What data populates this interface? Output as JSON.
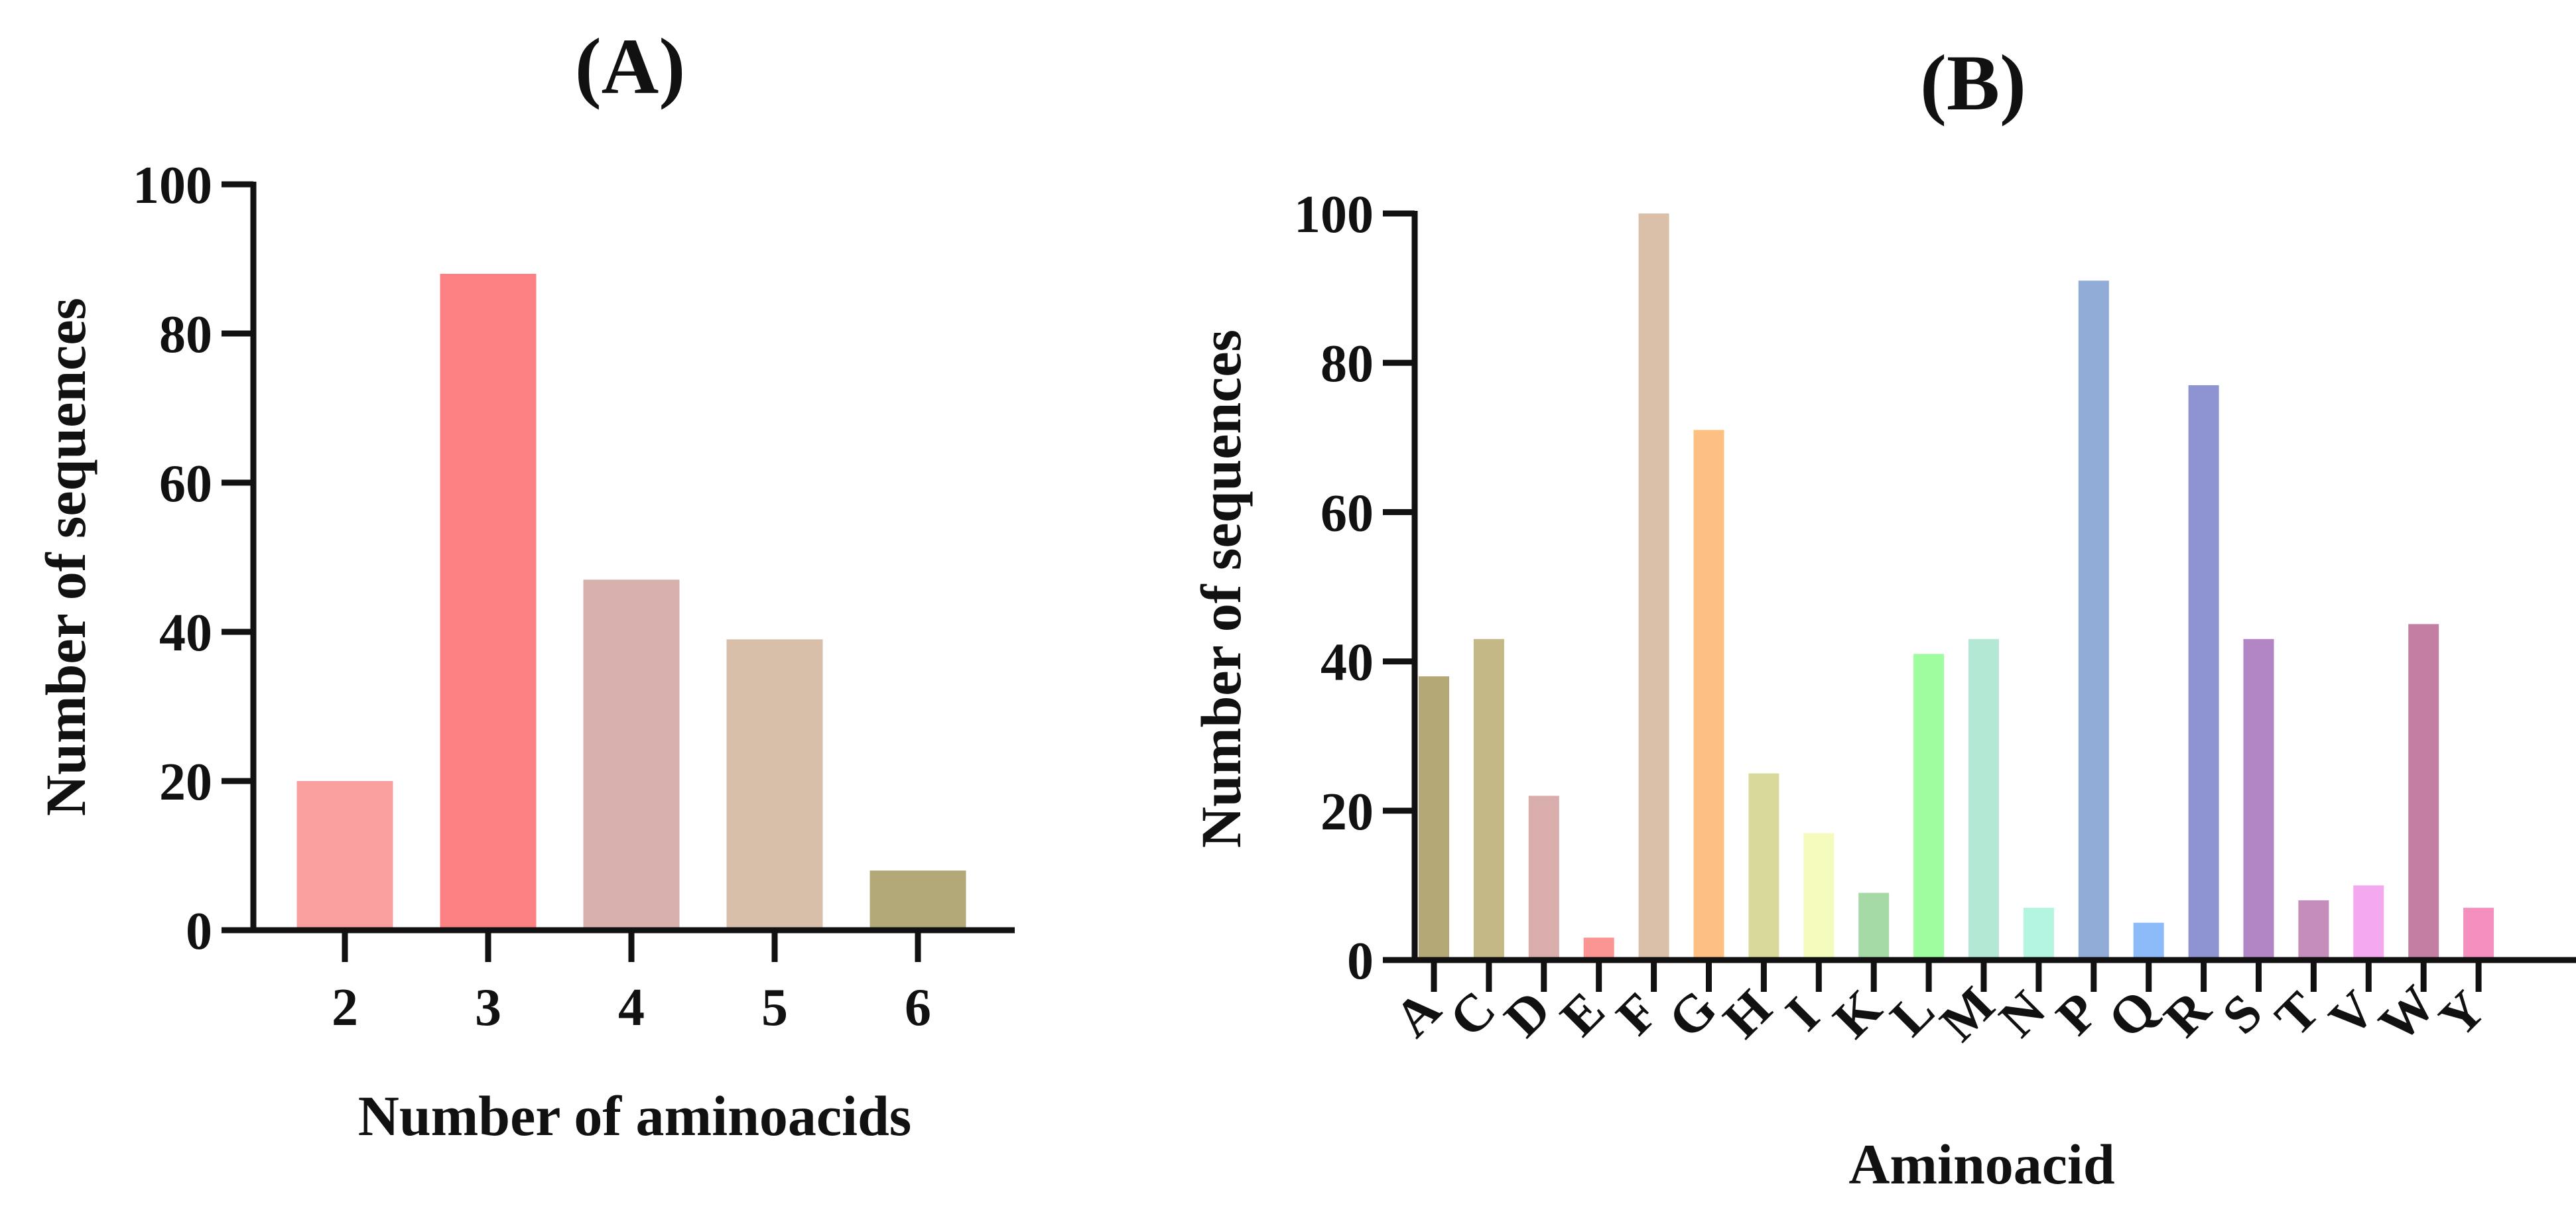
{
  "chart_data": [
    {
      "panel_label": "(A)",
      "type": "bar",
      "xlabel": "Number of aminoacids",
      "ylabel": "Number of sequences",
      "ylim": [
        0,
        100
      ],
      "yticks": [
        0,
        20,
        40,
        60,
        80,
        100
      ],
      "categories": [
        "2",
        "3",
        "4",
        "5",
        "6"
      ],
      "values": [
        20,
        88,
        47,
        39,
        8
      ],
      "colors": [
        "#f9a09e",
        "#fd8182",
        "#d8b0ae",
        "#d8bfa9",
        "#b3a878"
      ]
    },
    {
      "panel_label": "(B)",
      "type": "bar",
      "xlabel": "Aminoacid",
      "ylabel": "Number of sequences",
      "ylim": [
        0,
        100
      ],
      "yticks": [
        0,
        20,
        40,
        60,
        80,
        100
      ],
      "categories": [
        "A",
        "C",
        "D",
        "E",
        "F",
        "G",
        "H",
        "I",
        "K",
        "L",
        "M",
        "N",
        "P",
        "Q",
        "R",
        "S",
        "T",
        "V",
        "W",
        "Y"
      ],
      "values": [
        38,
        43,
        22,
        3,
        100,
        71,
        25,
        17,
        9,
        41,
        43,
        7,
        91,
        5,
        77,
        43,
        8,
        10,
        45,
        7
      ],
      "colors": [
        "#b4a877",
        "#c4b986",
        "#d9adac",
        "#fb9594",
        "#dabfa9",
        "#fdbf82",
        "#d9d99c",
        "#f4fbbc",
        "#a5d9a5",
        "#9ffd9f",
        "#b3e8d5",
        "#b4f5e1",
        "#8fabd6",
        "#8dbaf8",
        "#8e94d1",
        "#b285c5",
        "#c58db9",
        "#f4a9ef",
        "#c27ea3",
        "#f58fbf"
      ]
    }
  ]
}
